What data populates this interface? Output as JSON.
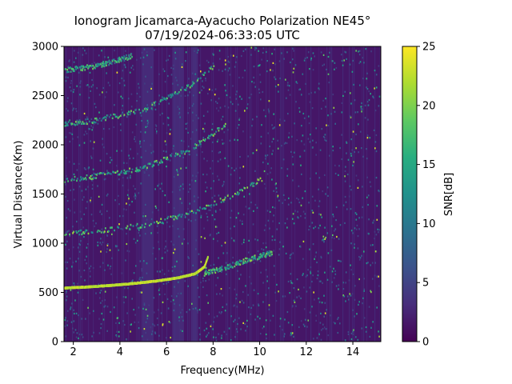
{
  "chart_data": {
    "type": "heatmap",
    "title_line1": "Ionogram Jicamarca-Ayacucho Polarization NE45°",
    "title_line2": "07/19/2024-06:33:05 UTC",
    "xlabel": "Frequency(MHz)",
    "ylabel": "Virtual Distance(Km)",
    "colorbar_label": "SNR[dB]",
    "colormap": "viridis",
    "xlim": [
      1.6,
      15.2
    ],
    "ylim": [
      0,
      3000
    ],
    "clim": [
      0,
      25
    ],
    "x_ticks": [
      2,
      4,
      6,
      8,
      10,
      12,
      14
    ],
    "y_ticks": [
      0,
      500,
      1000,
      1500,
      2000,
      2500,
      3000
    ],
    "colorbar_ticks": [
      0,
      5,
      10,
      15,
      20,
      25
    ],
    "background_snr_db": 1.5,
    "interference_bands_mhz": [
      [
        4.95,
        5.45
      ],
      [
        6.25,
        6.75
      ],
      [
        7.05,
        7.35
      ]
    ],
    "echo_traces": [
      {
        "name": "strong",
        "snr_db": 24,
        "points": [
          [
            1.6,
            545
          ],
          [
            2.5,
            555
          ],
          [
            3.5,
            570
          ],
          [
            4.5,
            590
          ],
          [
            5.5,
            615
          ],
          [
            6.5,
            650
          ],
          [
            7.2,
            690
          ],
          [
            7.6,
            760
          ],
          [
            7.75,
            860
          ]
        ]
      },
      {
        "name": "weak-continuation",
        "snr_db": 9,
        "points": [
          [
            7.6,
            690
          ],
          [
            8.5,
            750
          ],
          [
            9.5,
            830
          ],
          [
            10.5,
            900
          ]
        ]
      },
      {
        "name": "multihop-2",
        "snr_db": 10,
        "points": [
          [
            1.6,
            1090
          ],
          [
            3.0,
            1120
          ],
          [
            5.0,
            1180
          ],
          [
            7.0,
            1300
          ],
          [
            9.0,
            1500
          ],
          [
            10.0,
            1650
          ]
        ]
      },
      {
        "name": "multihop-3",
        "snr_db": 9,
        "points": [
          [
            1.6,
            1640
          ],
          [
            3.0,
            1680
          ],
          [
            5.0,
            1760
          ],
          [
            7.0,
            1950
          ],
          [
            8.5,
            2200
          ]
        ]
      },
      {
        "name": "multihop-4",
        "snr_db": 8,
        "points": [
          [
            1.6,
            2200
          ],
          [
            3.0,
            2250
          ],
          [
            5.0,
            2350
          ],
          [
            7.0,
            2600
          ],
          [
            8.0,
            2800
          ]
        ]
      },
      {
        "name": "multihop-5",
        "snr_db": 8,
        "points": [
          [
            1.6,
            2750
          ],
          [
            3.0,
            2800
          ],
          [
            4.5,
            2900
          ]
        ]
      }
    ]
  }
}
